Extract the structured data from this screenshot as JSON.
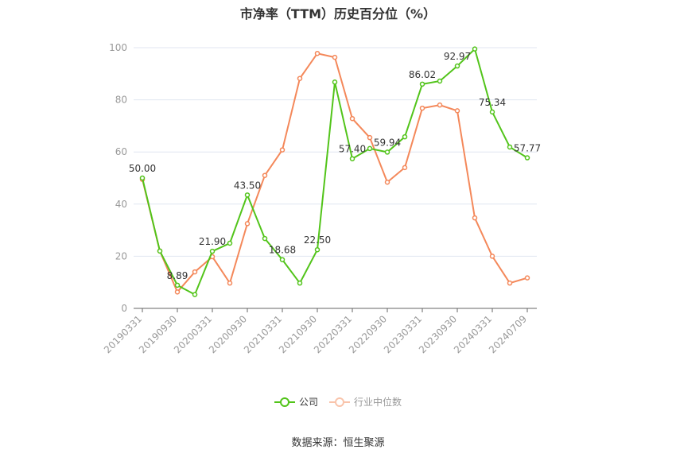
{
  "chart_data": {
    "type": "line",
    "title": "市净率（TTM）历史百分位（%）",
    "xlabel": "",
    "ylabel": "",
    "ylim": [
      0,
      100
    ],
    "yticks": [
      0,
      20,
      40,
      60,
      80,
      100
    ],
    "grid": true,
    "legend_position": "bottom",
    "x": [
      "20190331",
      "20190630",
      "20190930",
      "20191231",
      "20200331",
      "20200630",
      "20200930",
      "20201231",
      "20210331",
      "20210630",
      "20210930",
      "20211231",
      "20220331",
      "20220630",
      "20220930",
      "20221231",
      "20230331",
      "20230630",
      "20230930",
      "20231231",
      "20240331",
      "20240630",
      "20240709"
    ],
    "xtick_labels": [
      "20190331",
      "20190930",
      "20200331",
      "20200930",
      "20210331",
      "20210930",
      "20220331",
      "20220930",
      "20230331",
      "20230930",
      "20240331",
      "20240709"
    ],
    "series": [
      {
        "name": "公司",
        "color": "#52c41a",
        "values": [
          50.0,
          22.0,
          8.89,
          5.3,
          21.9,
          25.0,
          43.5,
          26.8,
          18.68,
          9.7,
          22.5,
          86.8,
          57.4,
          61.3,
          59.94,
          65.8,
          86.02,
          87.2,
          92.97,
          99.5,
          75.34,
          61.9,
          57.77
        ],
        "labels": {
          "0": "50.00",
          "2": "8.89",
          "4": "21.90",
          "6": "43.50",
          "8": "18.68",
          "10": "22.50",
          "12": "57.40",
          "14": "59.94",
          "16": "86.02",
          "18": "92.97",
          "20": "75.34",
          "22": "57.77"
        }
      },
      {
        "name": "行业中位数",
        "color": "#f4885a",
        "values": [
          49.5,
          22.0,
          6.3,
          14.0,
          19.8,
          9.7,
          32.5,
          51.0,
          60.8,
          88.2,
          97.8,
          96.3,
          72.8,
          65.5,
          48.4,
          54.0,
          76.8,
          78.0,
          75.8,
          34.7,
          20.0,
          9.7,
          11.7
        ]
      }
    ]
  },
  "title": "市净率（TTM）历史百分位（%）",
  "legend": [
    {
      "label": "公司",
      "color": "#52c41a"
    },
    {
      "label": "行业中位数",
      "color": "#f4a582"
    }
  ],
  "source": "数据来源：恒生聚源"
}
